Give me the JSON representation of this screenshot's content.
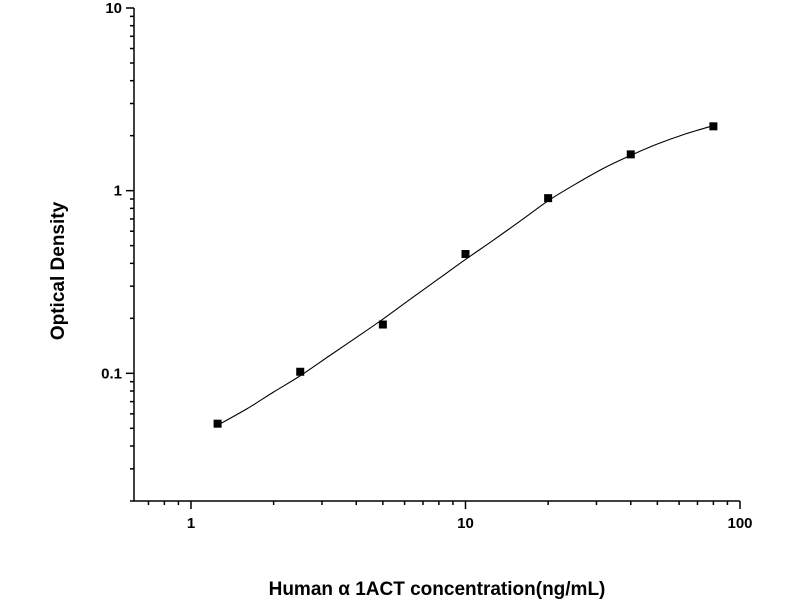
{
  "chart_data": {
    "type": "scatter",
    "title": "",
    "xlabel": "Human α 1ACT concentration(ng/mL)",
    "ylabel": "Optical Density",
    "x_scale": "log",
    "y_scale": "log",
    "xlim": [
      0.62,
      100
    ],
    "ylim": [
      0.02,
      10
    ],
    "x_ticks": [
      1,
      10,
      100
    ],
    "x_tick_labels": [
      "1",
      "10",
      "100"
    ],
    "y_ticks": [
      0.1,
      1,
      10
    ],
    "y_tick_labels": [
      "0.1",
      "1",
      "10"
    ],
    "grid": false,
    "legend": "none",
    "series": [
      {
        "x": [
          1.25,
          2.5,
          5,
          10,
          20,
          40,
          80
        ],
        "y": [
          0.053,
          0.102,
          0.185,
          0.45,
          0.91,
          1.58,
          2.25
        ]
      }
    ],
    "fit_curve": {
      "x": [
        1.25,
        1.6,
        2,
        2.5,
        3.2,
        4,
        5,
        6.3,
        8,
        10,
        12.5,
        16,
        20,
        25,
        32,
        40,
        50,
        63,
        80
      ],
      "y": [
        0.052,
        0.064,
        0.079,
        0.097,
        0.125,
        0.157,
        0.198,
        0.255,
        0.33,
        0.42,
        0.53,
        0.69,
        0.88,
        1.08,
        1.33,
        1.56,
        1.8,
        2.04,
        2.27
      ]
    }
  }
}
